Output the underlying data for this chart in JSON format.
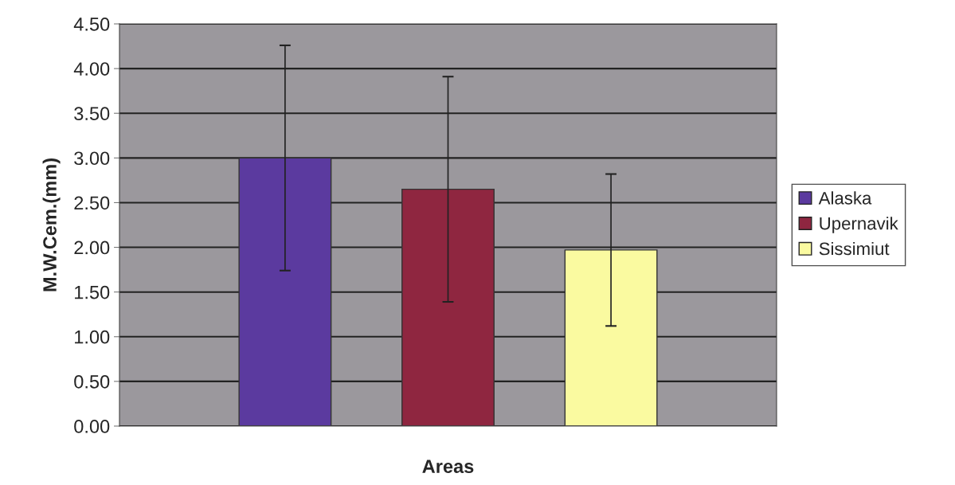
{
  "chart_data": {
    "type": "bar",
    "xlabel": "Areas",
    "ylabel": "M.W.Cem.(mm)",
    "categories": [
      null
    ],
    "series": [
      {
        "name": "Alaska",
        "color": "#5b3a9f",
        "values": [
          3.0
        ],
        "errors": [
          1.26
        ]
      },
      {
        "name": "Upernavik",
        "color": "#8f2640",
        "values": [
          2.65
        ],
        "errors": [
          1.26
        ]
      },
      {
        "name": "Sissimiut",
        "color": "#fafaa0",
        "values": [
          1.97
        ],
        "errors": [
          0.85
        ]
      }
    ],
    "ylim": [
      0,
      4.5
    ],
    "yticks": [
      {
        "value": 0,
        "label": "0.00"
      },
      {
        "value": 0.5,
        "label": "0.50"
      },
      {
        "value": 1,
        "label": "1.00"
      },
      {
        "value": 1.5,
        "label": "1.50"
      },
      {
        "value": 2,
        "label": "2.00"
      },
      {
        "value": 2.5,
        "label": "2.50"
      },
      {
        "value": 3,
        "label": "3.00"
      },
      {
        "value": 3.5,
        "label": "3.50"
      },
      {
        "value": 4,
        "label": "4.00"
      },
      {
        "value": 4.5,
        "label": "4.50"
      }
    ],
    "grid": "y",
    "legend": "right",
    "tick_labels": "y"
  }
}
